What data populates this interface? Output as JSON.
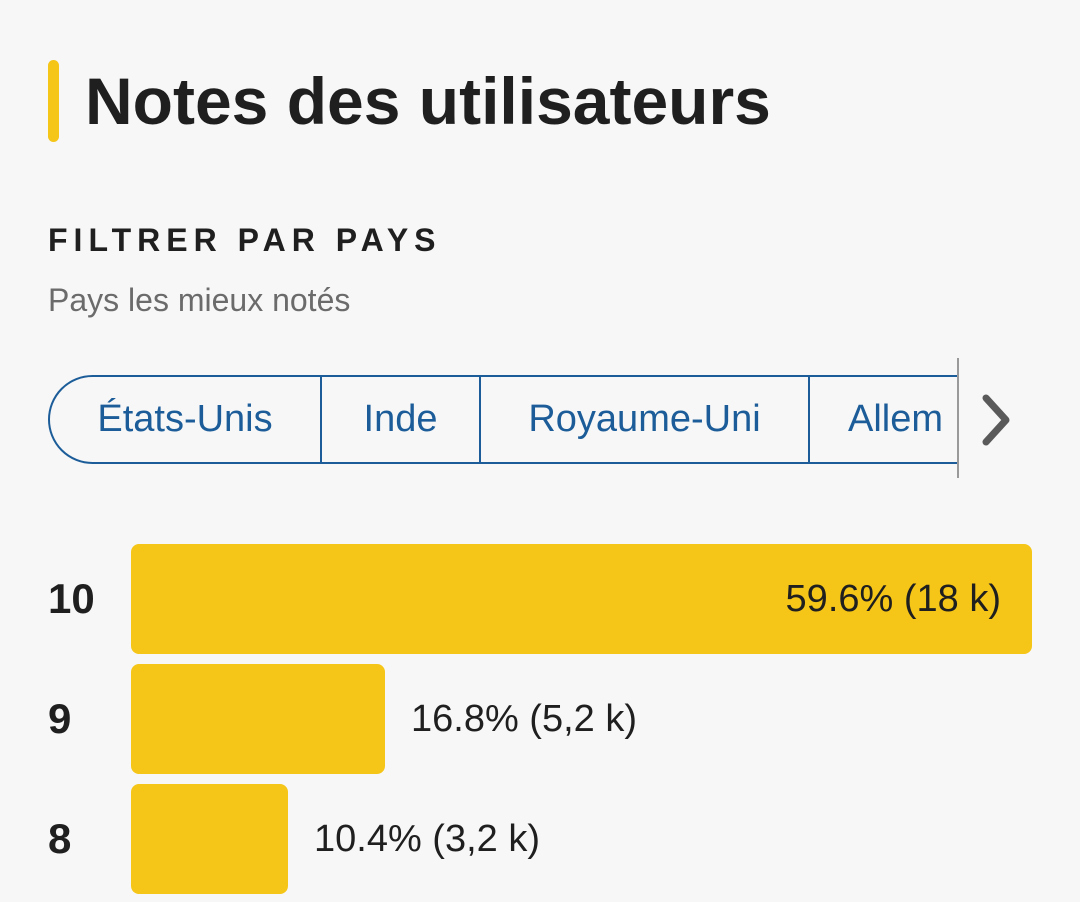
{
  "section": {
    "title": "Notes des utilisateurs",
    "filter_heading": "FILTRER PAR PAYS",
    "filter_subtitle": "Pays les mieux notés"
  },
  "countries": [
    {
      "label": "États-Unis"
    },
    {
      "label": "Inde"
    },
    {
      "label": "Royaume-Uni"
    },
    {
      "label": "Allem"
    }
  ],
  "ratings": [
    {
      "score": "10",
      "percent": 59.6,
      "label": "59.6% (18 k)"
    },
    {
      "score": "9",
      "percent": 16.8,
      "label": "16.8% (5,2 k)"
    },
    {
      "score": "8",
      "percent": 10.4,
      "label": "10.4% (3,2 k)"
    }
  ],
  "colors": {
    "accent": "#f5c518",
    "chip": "#1c5d99",
    "text": "#1f1f1f",
    "muted": "#6b6b6b",
    "background": "#f7f7f7"
  },
  "icons": {
    "scroll_right": "chevron-right-icon"
  }
}
